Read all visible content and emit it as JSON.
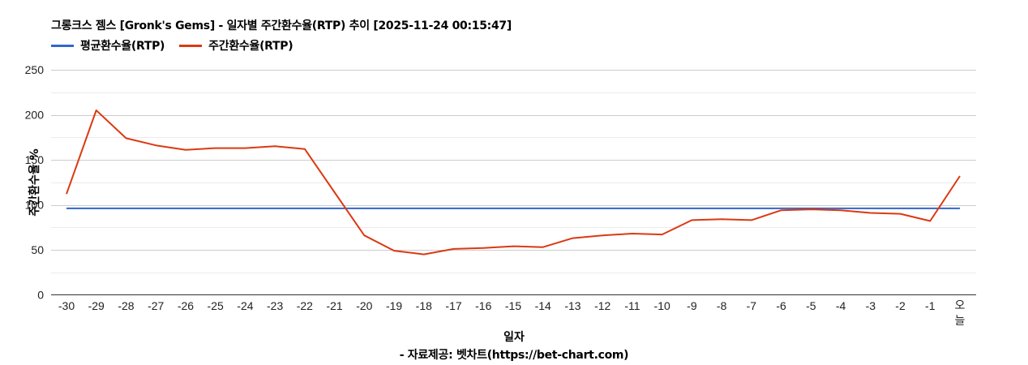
{
  "chart_data": {
    "type": "line",
    "title": "그롱크스 젬스 [Gronk's Gems] - 일자별 주간환수율(RTP) 추이 [2025-11-24 00:15:47]",
    "xlabel": "일자",
    "ylabel": "주간환수율 %",
    "source": "- 자료제공: 벳차트(https://bet-chart.com)",
    "ylim": [
      0,
      250
    ],
    "yticks": [
      0,
      50,
      100,
      150,
      200,
      250
    ],
    "grid": true,
    "legend_position": "top-left",
    "categories": [
      "-30",
      "-29",
      "-28",
      "-27",
      "-26",
      "-25",
      "-24",
      "-23",
      "-22",
      "-21",
      "-20",
      "-19",
      "-18",
      "-17",
      "-16",
      "-15",
      "-14",
      "-13",
      "-12",
      "-11",
      "-10",
      "-9",
      "-8",
      "-7",
      "-6",
      "-5",
      "-4",
      "-3",
      "-2",
      "-1",
      "오늘"
    ],
    "series": [
      {
        "name": "평균환수율(RTP)",
        "color": "#3366cc",
        "values": [
          96,
          96,
          96,
          96,
          96,
          96,
          96,
          96,
          96,
          96,
          96,
          96,
          96,
          96,
          96,
          96,
          96,
          96,
          96,
          96,
          96,
          96,
          96,
          96,
          96,
          96,
          96,
          96,
          96,
          96,
          96
        ]
      },
      {
        "name": "주간환수율(RTP)",
        "color": "#dc3912",
        "values": [
          112,
          205,
          174,
          166,
          161,
          163,
          163,
          165,
          162,
          114,
          66,
          49,
          45,
          51,
          52,
          54,
          53,
          63,
          66,
          68,
          67,
          83,
          84,
          83,
          94,
          95,
          94,
          91,
          90,
          82,
          132
        ]
      }
    ]
  },
  "legend": {
    "items": [
      {
        "label": "평균환수율(RTP)",
        "color": "#3366cc"
      },
      {
        "label": "주간환수율(RTP)",
        "color": "#dc3912"
      }
    ]
  },
  "today_label_line1": "오",
  "today_label_line2": "늘"
}
